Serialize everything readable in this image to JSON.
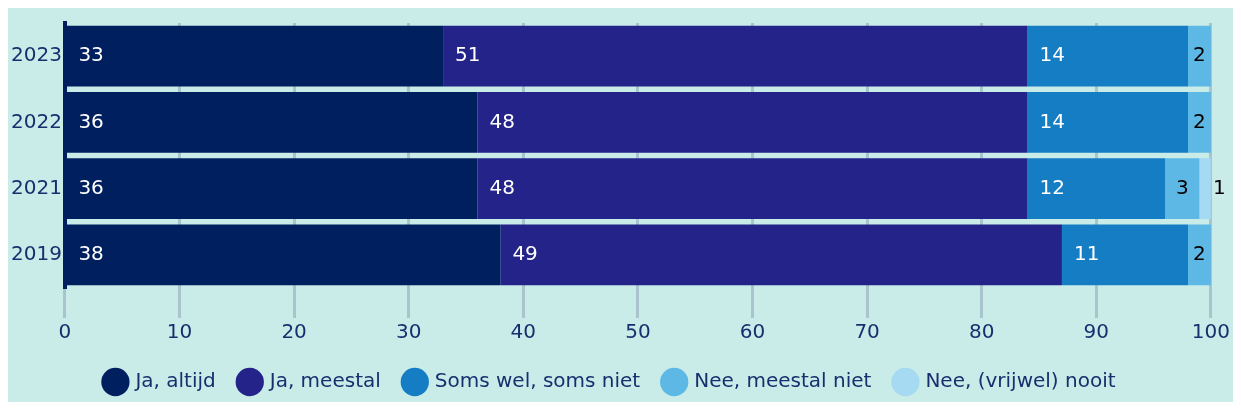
{
  "chart_data": {
    "type": "bar",
    "orientation": "horizontal",
    "stacked": true,
    "categories": [
      "2023",
      "2022",
      "2021",
      "2019"
    ],
    "series": [
      {
        "name": "Ja, altijd",
        "color": "#001f5f",
        "values": [
          33,
          36,
          36,
          38
        ]
      },
      {
        "name": "Ja, meestal",
        "color": "#23238a",
        "values": [
          51,
          48,
          48,
          49
        ]
      },
      {
        "name": "Soms wel, soms niet",
        "color": "#147dc3",
        "values": [
          14,
          14,
          12,
          11
        ]
      },
      {
        "name": "Nee, meestal niet",
        "color": "#5db8e5",
        "values": [
          2,
          2,
          3,
          2
        ]
      },
      {
        "name": "Nee, (vrijwel) nooit",
        "color": "#a6d9f2",
        "values": [
          null,
          null,
          1,
          null
        ]
      }
    ],
    "xlim": [
      0,
      100
    ],
    "xticks": [
      0,
      10,
      20,
      30,
      40,
      50,
      60,
      70,
      80,
      90,
      100
    ],
    "grid": "x",
    "legend": "bottom",
    "data_labels": true
  }
}
